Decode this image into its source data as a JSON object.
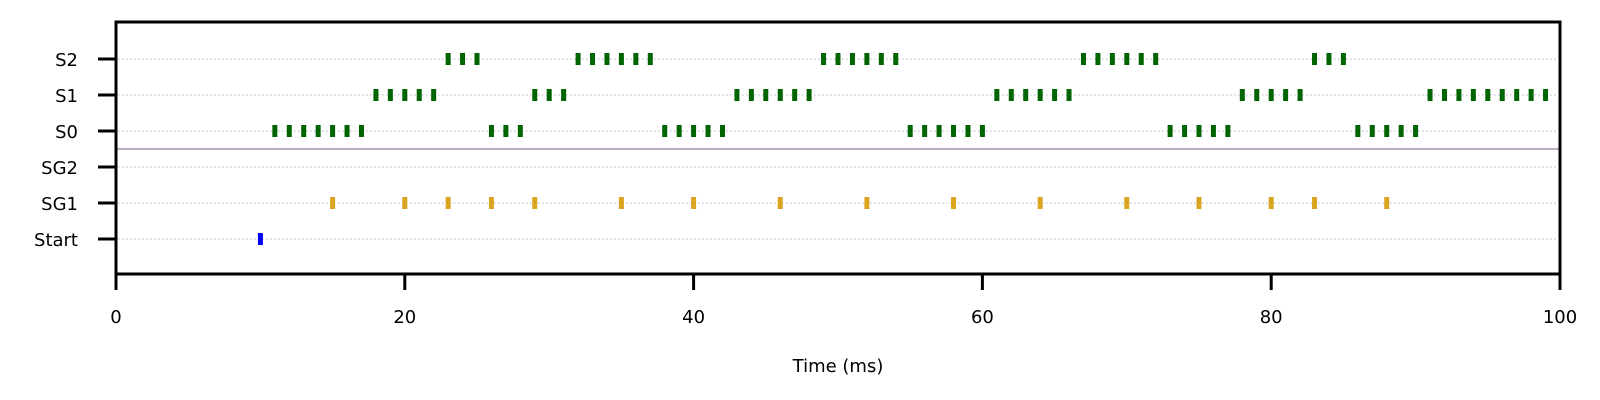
{
  "chart_data": {
    "type": "scatter",
    "subtype": "raster",
    "title": "",
    "xlabel": "Time (ms)",
    "ylabel": "",
    "xlim": [
      0,
      100
    ],
    "xticks": [
      0,
      20,
      40,
      60,
      80,
      100
    ],
    "xtick_labels": [
      "0",
      "20",
      "40",
      "60",
      "80",
      "100"
    ],
    "categories": [
      "S2",
      "S1",
      "S0",
      "SG2",
      "SG1",
      "Start"
    ],
    "grid": "horizontal dotted",
    "separator_between": [
      "S0",
      "SG2"
    ],
    "series": [
      {
        "name": "S2",
        "color": "#006400",
        "x": [
          23,
          24,
          25,
          32,
          33,
          34,
          35,
          36,
          37,
          49,
          50,
          51,
          52,
          53,
          54,
          67,
          68,
          69,
          70,
          71,
          72,
          83,
          84,
          85
        ]
      },
      {
        "name": "S1",
        "color": "#006400",
        "x": [
          18,
          19,
          20,
          21,
          22,
          29,
          30,
          31,
          43,
          44,
          45,
          46,
          47,
          48,
          61,
          62,
          63,
          64,
          65,
          66,
          78,
          79,
          80,
          81,
          82,
          91,
          92,
          93,
          94,
          95,
          96,
          97,
          98,
          99
        ]
      },
      {
        "name": "S0",
        "color": "#006400",
        "x": [
          11,
          12,
          13,
          14,
          15,
          16,
          17,
          26,
          27,
          28,
          38,
          39,
          40,
          41,
          42,
          55,
          56,
          57,
          58,
          59,
          60,
          73,
          74,
          75,
          76,
          77,
          86,
          87,
          88,
          89,
          90
        ]
      },
      {
        "name": "SG2",
        "color": "#006400",
        "x": []
      },
      {
        "name": "SG1",
        "color": "#DAA520",
        "x": [
          15,
          20,
          23,
          26,
          29,
          35,
          40,
          46,
          52,
          58,
          64,
          70,
          75,
          80,
          83,
          88
        ]
      },
      {
        "name": "Start",
        "color": "#0000FF",
        "x": [
          10
        ]
      }
    ]
  }
}
